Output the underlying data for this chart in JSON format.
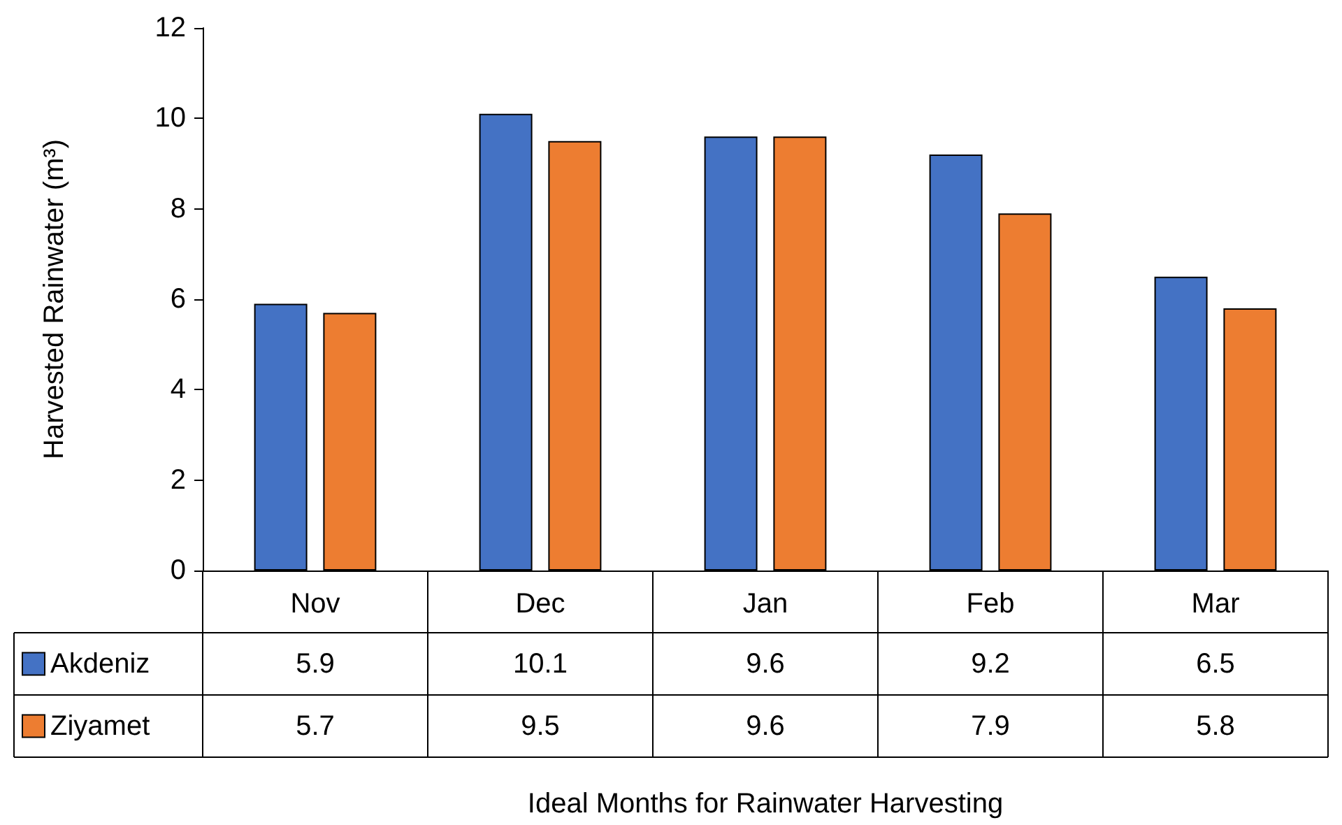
{
  "chart_data": {
    "type": "bar",
    "annotations": [
      "Ideal Months for Rainwater Harvesting"
    ],
    "ylabel": "Harvested Rainwater (m³)",
    "categories": [
      "Nov",
      "Dec",
      "Jan",
      "Feb",
      "Mar"
    ],
    "series": [
      {
        "name": "Akdeniz",
        "color": "#4472c4",
        "values": [
          5.9,
          10.1,
          9.6,
          9.2,
          6.5
        ]
      },
      {
        "name": "Ziyamet",
        "color": "#ed7d31",
        "values": [
          5.7,
          9.5,
          9.6,
          7.9,
          5.8
        ]
      }
    ],
    "ylim": [
      0,
      12
    ],
    "yticks": [
      0,
      2,
      4,
      6,
      8,
      10,
      12
    ],
    "grid": false,
    "legend": "bottom left",
    "data_labels": true
  }
}
